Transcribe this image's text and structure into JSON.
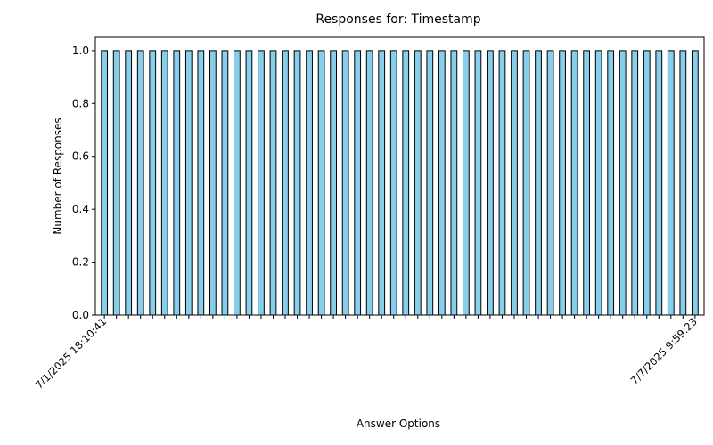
{
  "chart_data": {
    "type": "bar",
    "title": "Responses for: Timestamp",
    "xlabel": "Answer Options",
    "ylabel": "Number of Responses",
    "ylim": [
      0,
      1.05
    ],
    "yticks": [
      "0.0",
      "0.2",
      "0.4",
      "0.6",
      "0.8",
      "1.0"
    ],
    "bar_color": "#87ceeb",
    "bar_edge_color": "#000000",
    "grid": false,
    "categories": [
      "7/1/2025 18:10:41",
      "",
      "",
      "",
      "",
      "",
      "",
      "",
      "",
      "",
      "",
      "",
      "",
      "",
      "",
      "",
      "",
      "",
      "",
      "",
      "",
      "",
      "",
      "",
      "",
      "",
      "",
      "",
      "",
      "",
      "",
      "",
      "",
      "",
      "",
      "",
      "",
      "",
      "",
      "",
      "",
      "",
      "",
      "",
      "",
      "",
      "",
      "",
      "",
      "7/7/2025 9:59:23"
    ],
    "values": [
      1,
      1,
      1,
      1,
      1,
      1,
      1,
      1,
      1,
      1,
      1,
      1,
      1,
      1,
      1,
      1,
      1,
      1,
      1,
      1,
      1,
      1,
      1,
      1,
      1,
      1,
      1,
      1,
      1,
      1,
      1,
      1,
      1,
      1,
      1,
      1,
      1,
      1,
      1,
      1,
      1,
      1,
      1,
      1,
      1,
      1,
      1,
      1,
      1,
      1
    ]
  }
}
